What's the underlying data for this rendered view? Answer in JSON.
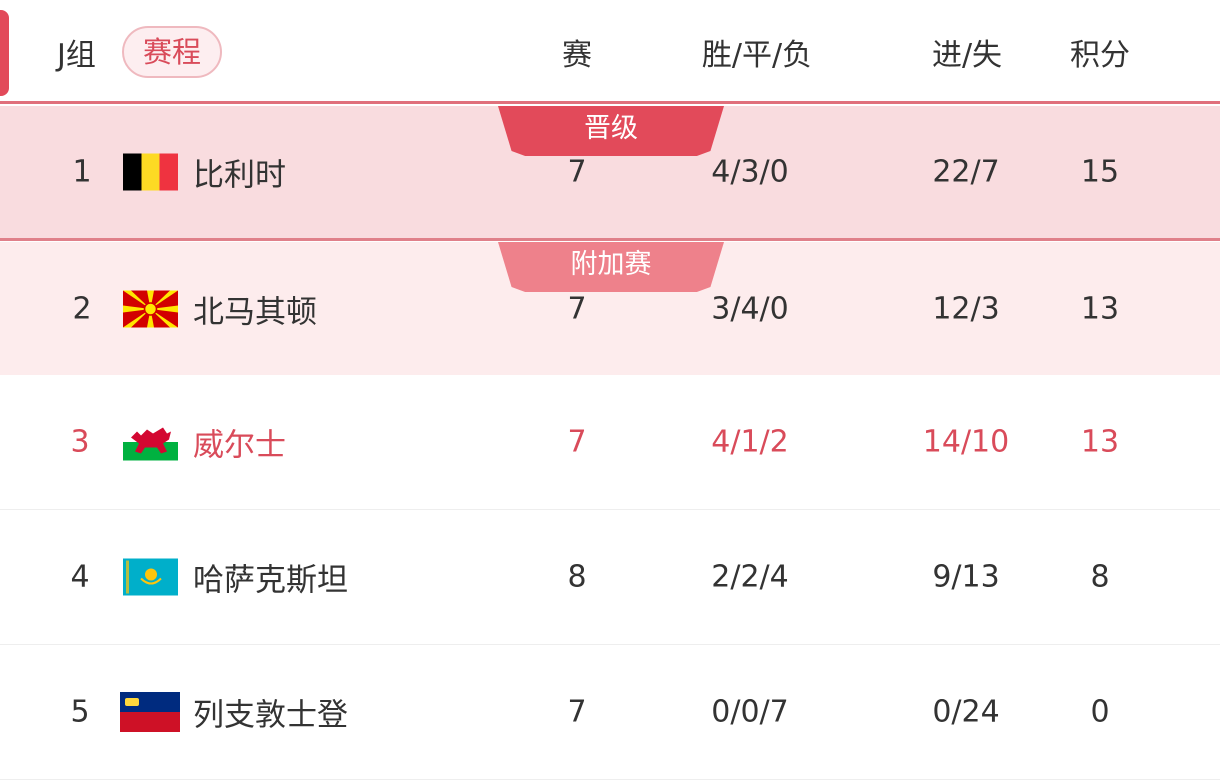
{
  "header": {
    "group": "J组",
    "schedule_button": "赛程",
    "col_played": "赛",
    "col_wdl": "胜/平/负",
    "col_goals": "进/失",
    "col_points": "积分"
  },
  "colors": {
    "accent": "#e24a5a",
    "qualified_bg": "#f9dcdf",
    "playoff_bg": "#fdeced"
  },
  "rows": [
    {
      "rank": "1",
      "flag": "belgium-flag",
      "team": "比利时",
      "played": "7",
      "wdl": "4/3/0",
      "goals": "22/7",
      "points": "15",
      "tag": "晋级"
    },
    {
      "rank": "2",
      "flag": "north-macedonia-flag",
      "team": "北马其顿",
      "played": "7",
      "wdl": "3/4/0",
      "goals": "12/3",
      "points": "13",
      "tag": "附加赛"
    },
    {
      "rank": "3",
      "flag": "wales-flag",
      "team": "威尔士",
      "played": "7",
      "wdl": "4/1/2",
      "goals": "14/10",
      "points": "13"
    },
    {
      "rank": "4",
      "flag": "kazakhstan-flag",
      "team": "哈萨克斯坦",
      "played": "8",
      "wdl": "2/2/4",
      "goals": "9/13",
      "points": "8"
    },
    {
      "rank": "5",
      "flag": "liechtenstein-flag",
      "team": "列支敦士登",
      "played": "7",
      "wdl": "0/0/7",
      "goals": "0/24",
      "points": "0"
    }
  ]
}
